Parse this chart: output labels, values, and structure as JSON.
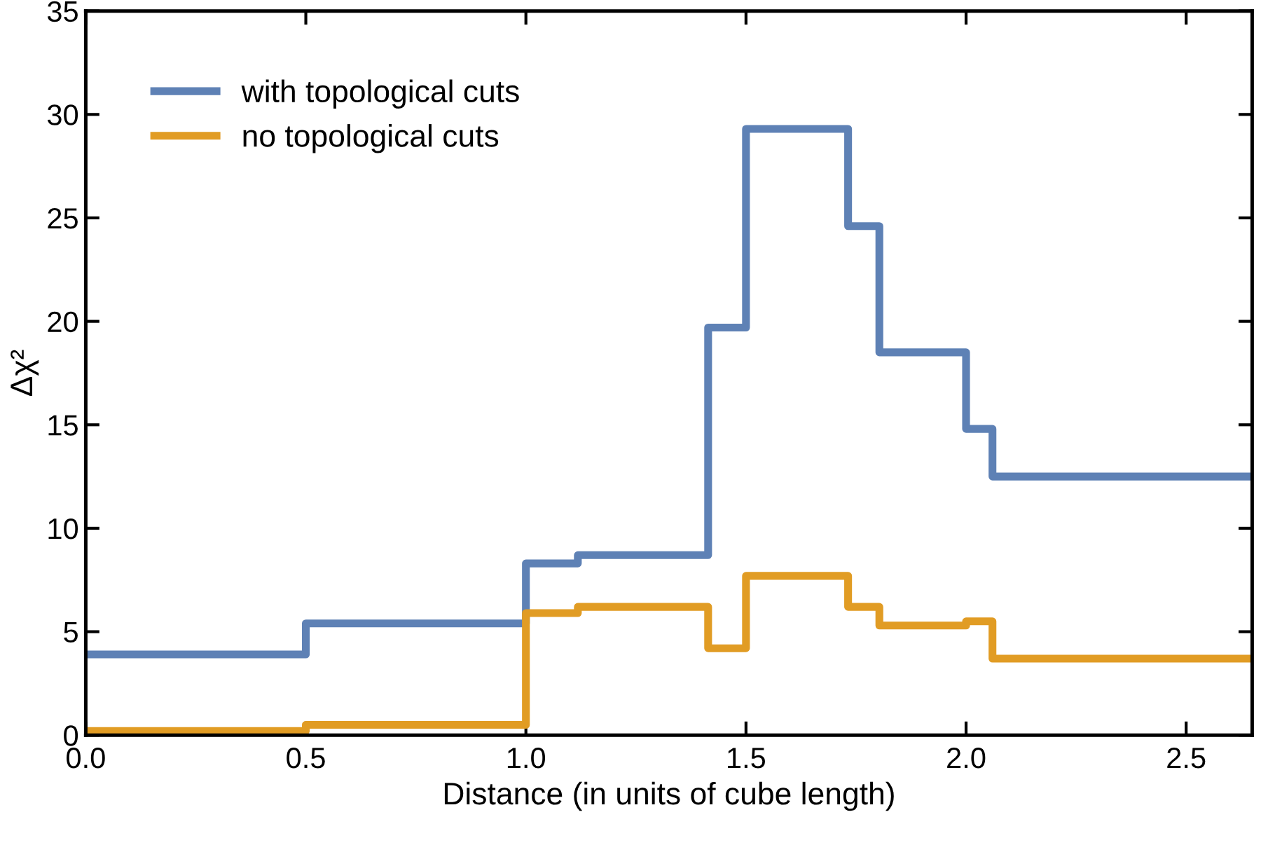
{
  "chart_data": {
    "type": "step",
    "xlabel": "Distance (in units of cube length)",
    "ylabel": "Δχ²",
    "x": [
      0,
      0.5,
      1.0,
      1.118,
      1.414,
      1.5,
      1.732,
      1.803,
      2.0,
      2.06,
      2.65
    ],
    "series": [
      {
        "name": "with topological cuts",
        "color": "#5e81b5",
        "values": [
          3.9,
          5.4,
          8.3,
          8.7,
          19.7,
          29.3,
          24.6,
          18.5,
          14.8,
          12.5,
          12.5
        ]
      },
      {
        "name": "no topological cuts",
        "color": "#e19c24",
        "values": [
          0.2,
          0.5,
          5.9,
          6.2,
          4.2,
          7.7,
          6.2,
          5.3,
          5.5,
          3.7,
          3.7
        ]
      }
    ],
    "xlim": [
      0,
      2.65
    ],
    "ylim": [
      0,
      35
    ],
    "xticks": [
      {
        "value": 0,
        "label": "0.0"
      },
      {
        "value": 0.5,
        "label": "0.5"
      },
      {
        "value": 1.0,
        "label": "1.0"
      },
      {
        "value": 1.5,
        "label": "1.5"
      },
      {
        "value": 2.0,
        "label": "2.0"
      },
      {
        "value": 2.5,
        "label": "2.5"
      }
    ],
    "yticks": [
      0,
      5,
      10,
      15,
      20,
      25,
      30,
      35
    ],
    "legend": "top left",
    "grid": false
  }
}
